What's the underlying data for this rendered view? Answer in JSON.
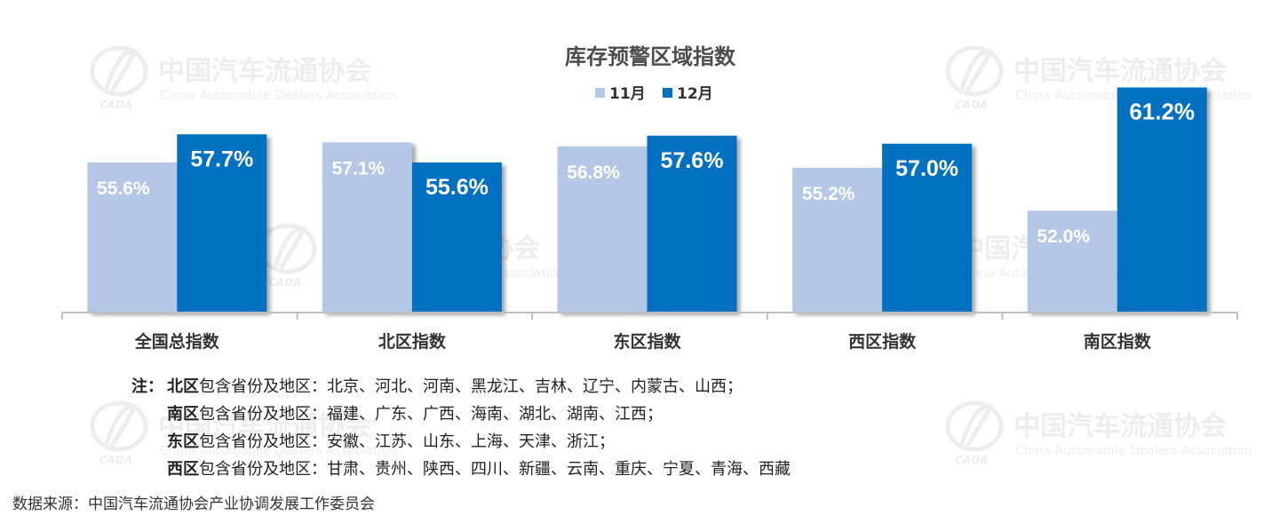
{
  "watermark": {
    "cn": "中国汽车流通协会",
    "en": "China Automobile Dealers Association",
    "logo_text": "CADA"
  },
  "chart_data": {
    "type": "bar",
    "title": "库存预警区域指数",
    "categories": [
      "全国总指数",
      "北区指数",
      "东区指数",
      "西区指数",
      "南区指数"
    ],
    "series": [
      {
        "name": "11月",
        "values": [
          55.6,
          57.1,
          56.8,
          55.2,
          52.0
        ],
        "labels": [
          "55.6%",
          "57.1%",
          "56.8%",
          "55.2%",
          "52.0%"
        ],
        "color": "#b4c7e7"
      },
      {
        "name": "12月",
        "values": [
          57.7,
          55.6,
          57.6,
          57.0,
          61.2
        ],
        "labels": [
          "57.7%",
          "55.6%",
          "57.6%",
          "57.0%",
          "61.2%"
        ],
        "color": "#0070c0"
      }
    ],
    "ylim": [
      0,
      70
    ],
    "grid": false,
    "legend": "top-center"
  },
  "notes": {
    "prefix": "注：",
    "suffix_text": "包含省份及地区：",
    "items": [
      {
        "region": "北区",
        "list": "北京、河北、河南、黑龙江、吉林、辽宁、内蒙古、山西；"
      },
      {
        "region": "南区",
        "list": "福建、广东、广西、海南、湖北、湖南、江西；"
      },
      {
        "region": "东区",
        "list": "安徽、江苏、山东、上海、天津、浙江；"
      },
      {
        "region": "西区",
        "list": "甘肃、贵州、陕西、四川、新疆、云南、重庆、宁夏、青海、西藏"
      }
    ]
  },
  "source": "数据来源：中国汽车流通协会产业协调发展工作委员会"
}
